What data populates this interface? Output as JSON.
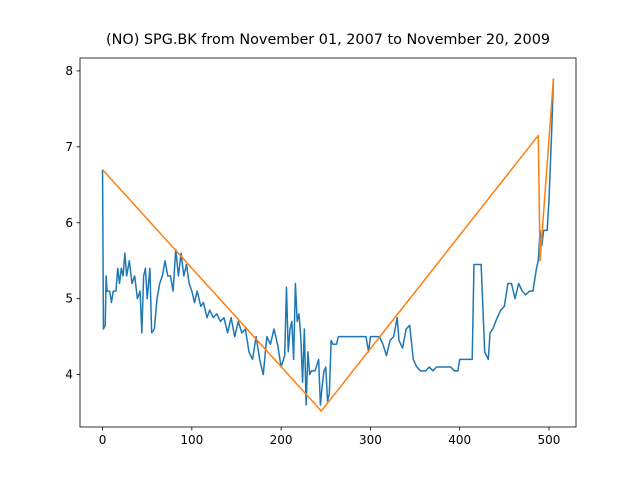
{
  "chart_data": {
    "type": "line",
    "title": "(NO) SPG.BK from November 01, 2007 to November 20, 2009",
    "xlim": [
      -25.25,
      530.25
    ],
    "ylim": [
      3.31,
      8.17
    ],
    "xticks": [
      0,
      100,
      200,
      300,
      400,
      500
    ],
    "yticks": [
      4,
      5,
      6,
      7,
      8
    ],
    "series": [
      {
        "color": "#1f77b4",
        "x": [
          0,
          1,
          3,
          4,
          5,
          8,
          10,
          12,
          15,
          17,
          19,
          21,
          23,
          25,
          27,
          30,
          33,
          36,
          39,
          42,
          44,
          46,
          48,
          50,
          53,
          55,
          58,
          61,
          64,
          67,
          70,
          73,
          76,
          79,
          82,
          85,
          88,
          91,
          94,
          97,
          100,
          103,
          106,
          110,
          113,
          117,
          120,
          124,
          128,
          132,
          136,
          140,
          144,
          148,
          152,
          156,
          160,
          164,
          168,
          172,
          176,
          180,
          184,
          188,
          192,
          196,
          200,
          204,
          206,
          208,
          210,
          212,
          214,
          216,
          218,
          220,
          222,
          224,
          226,
          228,
          230,
          232,
          234,
          238,
          242,
          244,
          246,
          248,
          250,
          252,
          254,
          256,
          258,
          262,
          264,
          270,
          280,
          295,
          298,
          300,
          305,
          310,
          314,
          318,
          322,
          326,
          330,
          332,
          336,
          340,
          344,
          348,
          352,
          356,
          362,
          366,
          370,
          374,
          380,
          390,
          394,
          398,
          400,
          410,
          414,
          416,
          424,
          428,
          432,
          434,
          437,
          442,
          446,
          450,
          454,
          458,
          462,
          466,
          470,
          474,
          478,
          482,
          486,
          488,
          490,
          492,
          494,
          498,
          500,
          503,
          505
        ],
        "values": [
          6.7,
          4.6,
          4.65,
          5.3,
          5.1,
          5.1,
          4.95,
          5.1,
          5.1,
          5.4,
          5.2,
          5.4,
          5.3,
          5.6,
          5.3,
          5.5,
          5.2,
          5.3,
          5.0,
          5.1,
          4.55,
          5.3,
          5.4,
          5.0,
          5.4,
          4.55,
          4.6,
          5.0,
          5.2,
          5.3,
          5.5,
          5.3,
          5.3,
          5.1,
          5.65,
          5.3,
          5.6,
          5.3,
          5.45,
          5.2,
          5.1,
          4.95,
          5.1,
          4.9,
          4.95,
          4.75,
          4.85,
          4.75,
          4.8,
          4.7,
          4.75,
          4.55,
          4.75,
          4.5,
          4.7,
          4.55,
          4.6,
          4.3,
          4.2,
          4.5,
          4.2,
          4.0,
          4.5,
          4.4,
          4.6,
          4.4,
          4.1,
          4.25,
          5.15,
          4.3,
          4.6,
          4.7,
          4.2,
          5.2,
          4.7,
          4.8,
          4.5,
          3.9,
          4.6,
          3.6,
          4.3,
          4.0,
          4.05,
          4.05,
          4.2,
          3.6,
          3.85,
          4.05,
          4.1,
          3.65,
          3.75,
          4.45,
          4.4,
          4.4,
          4.5,
          4.5,
          4.5,
          4.5,
          4.3,
          4.5,
          4.5,
          4.5,
          4.4,
          4.25,
          4.45,
          4.5,
          4.75,
          4.45,
          4.35,
          4.6,
          4.65,
          4.2,
          4.1,
          4.05,
          4.05,
          4.1,
          4.05,
          4.1,
          4.1,
          4.1,
          4.05,
          4.05,
          4.2,
          4.2,
          4.2,
          5.45,
          5.45,
          4.3,
          4.2,
          4.55,
          4.6,
          4.75,
          4.85,
          4.9,
          5.2,
          5.2,
          5.0,
          5.2,
          5.1,
          5.05,
          5.1,
          5.1,
          5.4,
          5.5,
          5.9,
          5.7,
          5.9,
          5.9,
          6.3,
          7.2,
          7.9
        ]
      },
      {
        "color": "#ff7f0e",
        "x": [
          0,
          245,
          488,
          490,
          505
        ],
        "values": [
          6.7,
          3.52,
          7.15,
          5.5,
          7.9
        ]
      }
    ]
  }
}
